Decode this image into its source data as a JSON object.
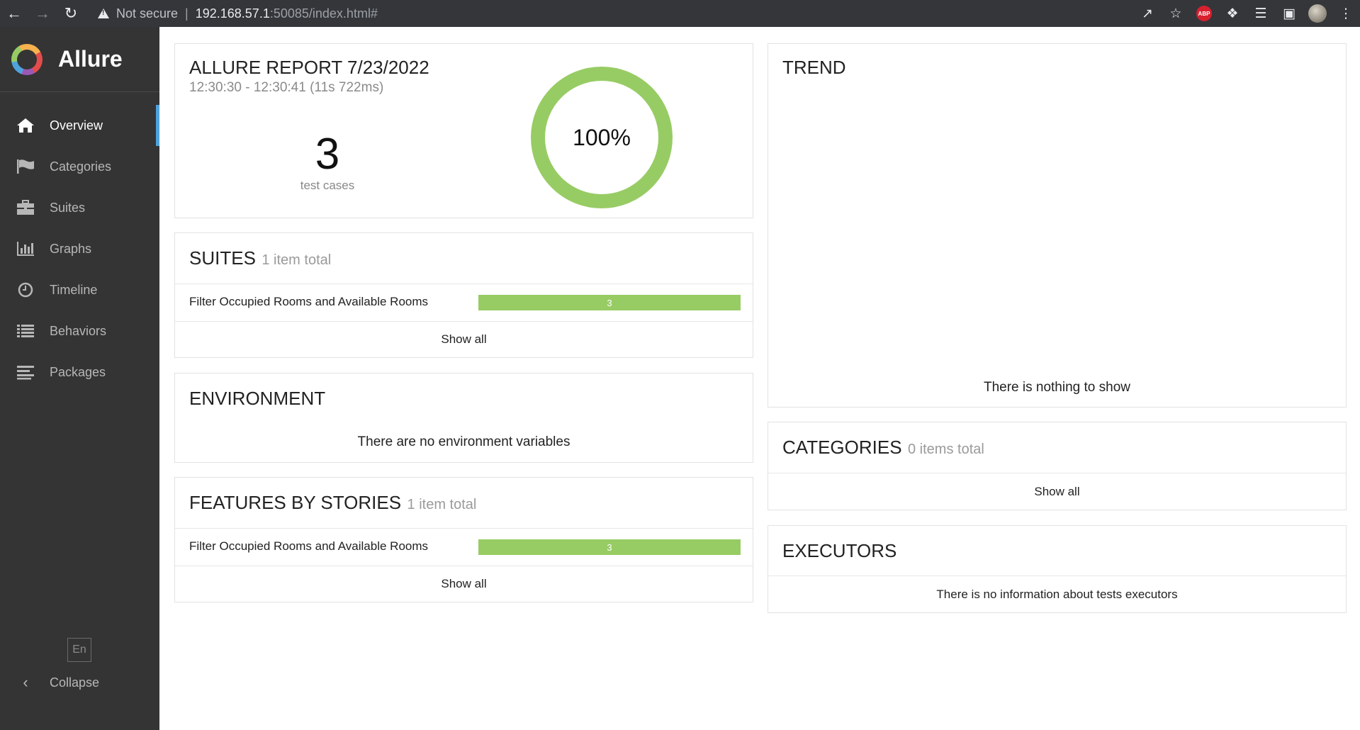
{
  "browser": {
    "security_label": "Not secure",
    "url_host": "192.168.57.1",
    "url_rest": ":50085/index.html#",
    "abp_label": "ABP"
  },
  "sidebar": {
    "logo": "Allure",
    "items": [
      {
        "label": "Overview",
        "icon": "home-icon"
      },
      {
        "label": "Categories",
        "icon": "flag-icon"
      },
      {
        "label": "Suites",
        "icon": "briefcase-icon"
      },
      {
        "label": "Graphs",
        "icon": "bar-chart-icon"
      },
      {
        "label": "Timeline",
        "icon": "clock-icon"
      },
      {
        "label": "Behaviors",
        "icon": "list-icon"
      },
      {
        "label": "Packages",
        "icon": "align-left-icon"
      }
    ],
    "language": "En",
    "collapse_label": "Collapse"
  },
  "summary": {
    "title": "ALLURE REPORT 7/23/2022",
    "time_range": "12:30:30 - 12:30:41 (11s 722ms)",
    "test_count": "3",
    "test_count_label": "test cases",
    "pass_rate": "100%",
    "pass_fraction": 1.0
  },
  "suites": {
    "title": "SUITES",
    "subtitle": "1 item total",
    "rows": [
      {
        "label": "Filter Occupied Rooms and Available Rooms",
        "count": "3"
      }
    ],
    "show_all": "Show all"
  },
  "environment": {
    "title": "ENVIRONMENT",
    "empty": "There are no environment variables"
  },
  "features": {
    "title": "FEATURES BY STORIES",
    "subtitle": "1 item total",
    "rows": [
      {
        "label": "Filter Occupied Rooms and Available Rooms",
        "count": "3"
      }
    ],
    "show_all": "Show all"
  },
  "trend": {
    "title": "TREND",
    "empty": "There is nothing to show"
  },
  "categories": {
    "title": "CATEGORIES",
    "subtitle": "0 items total",
    "show_all": "Show all"
  },
  "executors": {
    "title": "EXECUTORS",
    "empty": "There is no information about tests executors"
  },
  "colors": {
    "passed": "#97cc64",
    "sidebar": "#343434",
    "active_indicator": "#4ea3dd"
  }
}
